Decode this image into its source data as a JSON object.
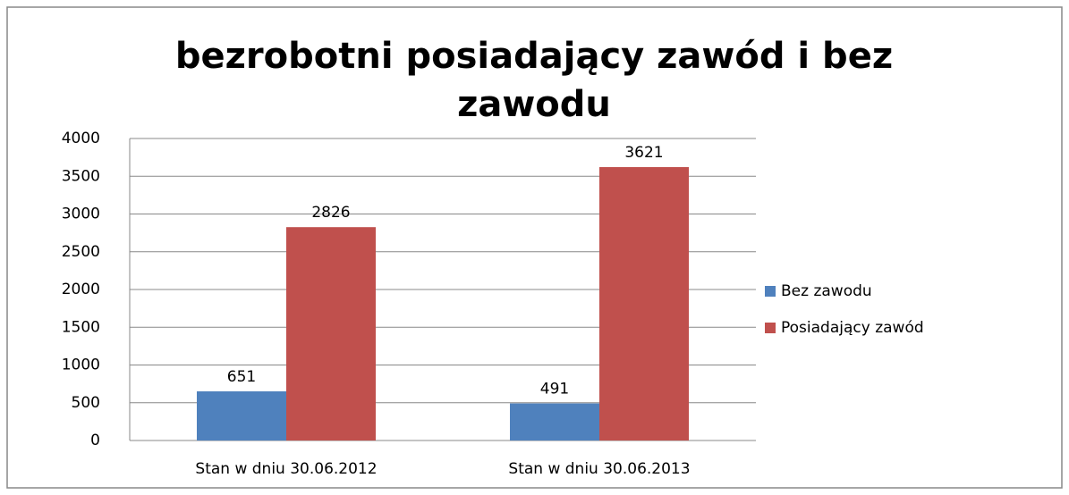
{
  "chart_data": {
    "type": "bar",
    "title": "bezrobotni posiadający zawód i bez zawodu",
    "categories": [
      "Stan w dniu 30.06.2012",
      "Stan w dniu 30.06.2013"
    ],
    "series": [
      {
        "name": "Bez zawodu",
        "color": "#4f81bd",
        "values": [
          651,
          491
        ]
      },
      {
        "name": "Posiadający zawód",
        "color": "#c0504d",
        "values": [
          2826,
          3621
        ]
      }
    ],
    "ylim": [
      0,
      4000
    ],
    "yticks": [
      0,
      500,
      1000,
      1500,
      2000,
      2500,
      3000,
      3500,
      4000
    ],
    "grid": true,
    "legend": "right"
  }
}
